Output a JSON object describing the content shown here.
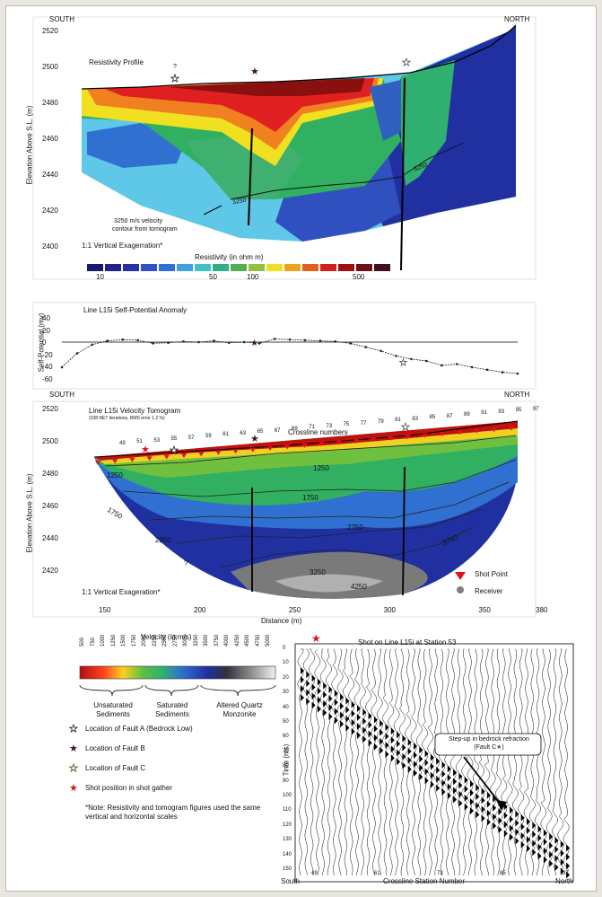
{
  "colors": {
    "fault_a": "#ffffff",
    "fault_b": "#3b1a1a",
    "fault_c": "#5a5a2a",
    "shot": "#e01020",
    "shot_point": "#e01020",
    "receiver": "#808080"
  },
  "panel1": {
    "south": "SOUTH",
    "north": "NORTH",
    "title": "Resistivity Profile",
    "ylabel": "Elevation Above S.L. (m)",
    "yticks": [
      "2520",
      "2500",
      "2480",
      "2460",
      "2440",
      "2420",
      "2400"
    ],
    "contour_label_1": "3250 m/s velocity",
    "contour_label_2": "contour from tomogram",
    "contour_tags": [
      "3250",
      "3250"
    ],
    "exaggeration": "1:1 Vertical Exagerration*",
    "colorbar_title": "Resistivity (in ohm m)",
    "colorbar_ticks": [
      "10",
      "50",
      "100",
      "500"
    ],
    "fault_a_marker": "?"
  },
  "panel2": {
    "title": "Line L15i Self-Potential Anomaly",
    "ylabel": "Self-Potential (mv)",
    "yticks": [
      "40",
      "20",
      "0",
      "-20",
      "-40",
      "-60"
    ]
  },
  "panel3": {
    "south": "SOUTH",
    "north": "NORTH",
    "title": "Line L15i Velocity Tomogram",
    "subtitle": "(338 NET iterations, RMS error 1.2 %)",
    "crossline_title": "Crossline numbers",
    "ylabel": "Elevation Above S.L. (m)",
    "yticks": [
      "2520",
      "2500",
      "2480",
      "2460",
      "2440",
      "2420"
    ],
    "xticks": [
      "150",
      "200",
      "250",
      "300",
      "350",
      "380"
    ],
    "xlabel": "Distance (m)",
    "station_numbers": [
      "49",
      "51",
      "53",
      "55",
      "57",
      "59",
      "61",
      "63",
      "65",
      "67",
      "69",
      "71",
      "73",
      "75",
      "77",
      "79",
      "81",
      "83",
      "85",
      "87",
      "89",
      "91",
      "93",
      "95",
      "97"
    ],
    "contours": [
      "1250",
      "1250",
      "1750",
      "1750",
      "2250",
      "2750",
      "3250",
      "3750",
      "4250",
      "1250"
    ],
    "shot_point_label": "Shot Point",
    "receiver_label": "Receiver",
    "exaggeration": "1:1 Vertical Exageration*",
    "qmark": "?"
  },
  "legend": {
    "velocity_title": "Velocity (in m/s)",
    "velocity_ticks": [
      "500",
      "750",
      "1000",
      "1250",
      "1500",
      "1750",
      "2000",
      "2250",
      "2500",
      "2750",
      "3000",
      "3250",
      "3500",
      "3750",
      "4000",
      "4250",
      "4500",
      "4750",
      "5000"
    ],
    "group1": "Unsaturated\nSediments",
    "group2": "Saturated\nSediments",
    "group3": "Altered Quartz\nMonzonite",
    "fault_a": "Location of Fault A (Bedrock Low)",
    "fault_b": "Location of Fault B",
    "fault_c": "Location of Fault C",
    "shot_pos": "Shot position in shot gather",
    "note": "*Note: Resistivity and tomogram figures used the same vertical and horizontal scales"
  },
  "panel4": {
    "title": "Shot on Line L15i at Station 53",
    "ylabel": "Time (ms)",
    "yticks": [
      "0",
      "10",
      "20",
      "30",
      "40",
      "50",
      "60",
      "70",
      "80",
      "90",
      "100",
      "110",
      "120",
      "130",
      "140",
      "150"
    ],
    "xticks": [
      "49",
      "61",
      "73",
      "85",
      "97"
    ],
    "xlabel": "Crossline Station Number",
    "south": "South",
    "north": "North",
    "callout": "Step-up in bedrock refraction\n(Fault C",
    "callout_end": ")"
  },
  "chart_data": [
    {
      "type": "heatmap",
      "title": "Resistivity Profile",
      "ylabel": "Elevation Above S.L. (m)",
      "ylim": [
        2390,
        2525
      ],
      "colorbar": "Resistivity (in ohm m)",
      "colorbar_ticks": [
        10,
        50,
        100,
        500
      ]
    },
    {
      "type": "line",
      "title": "Line L15i Self-Potential Anomaly",
      "ylabel": "Self-Potential (mv)",
      "ylim": [
        -60,
        40
      ],
      "x": [
        140,
        148,
        156,
        164,
        172,
        180,
        188,
        196,
        204,
        212,
        220,
        228,
        236,
        244,
        252,
        260,
        268,
        276,
        284,
        292,
        300,
        308,
        316,
        324,
        332,
        340,
        348,
        356,
        364,
        372,
        380
      ],
      "series": [
        {
          "values": [
            -40,
            -18,
            -4,
            2,
            4,
            3,
            -2,
            -1,
            1,
            0,
            2,
            -1,
            0,
            -2,
            5,
            4,
            3,
            2,
            1,
            -2,
            -8,
            -14,
            -22,
            -27,
            -30,
            -37,
            -35,
            -40,
            -44,
            -48,
            -50
          ]
        }
      ]
    },
    {
      "type": "heatmap",
      "title": "Line L15i Velocity Tomogram",
      "xlabel": "Distance (m)",
      "ylabel": "Elevation Above S.L. (m)",
      "xlim": [
        140,
        385
      ],
      "ylim": [
        2410,
        2525
      ],
      "contours": [
        1250,
        1750,
        2250,
        2750,
        3250,
        3750,
        4250
      ]
    },
    {
      "type": "other",
      "title": "Shot on Line L15i at Station 53",
      "xlabel": "Crossline Station Number",
      "ylabel": "Time (ms)",
      "ylim": [
        0,
        150
      ]
    }
  ]
}
